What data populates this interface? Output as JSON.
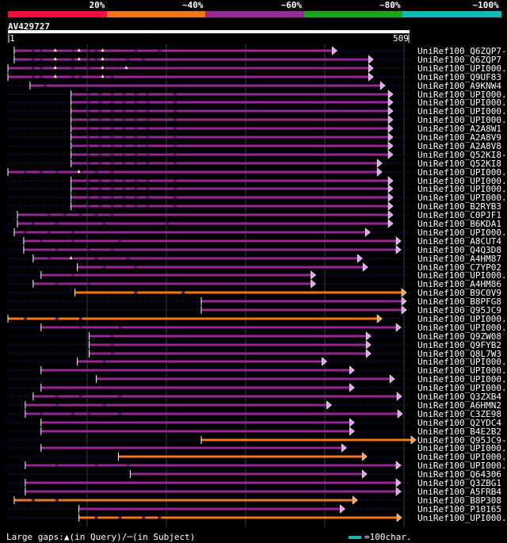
{
  "legend": {
    "scale_labels": [
      "20%",
      "~40%",
      "~60%",
      "~80%",
      "~100%"
    ],
    "scale_colors": [
      "#e8143c",
      "#f07818",
      "#982898",
      "#18a818",
      "#18b8b8"
    ]
  },
  "query": {
    "name": "AV429727",
    "start_label": "1",
    "end_label": "509",
    "length": 509
  },
  "footer": {
    "gaps_text": "Large gaps:▲(in Query)/─(in Subject)",
    "scale_text": "=100char.",
    "scale_color": "#18b8b8"
  },
  "hits": [
    {
      "id": "UniRef100_Q6ZQP7-2",
      "start": 8,
      "end": 417,
      "color": "#982898",
      "arrow": "lavender",
      "notches": [
        3,
        6,
        9
      ],
      "gaps": [
        30,
        40,
        80,
        100,
        110,
        160,
        190
      ]
    },
    {
      "id": "UniRef100_Q6ZQP7",
      "start": 8,
      "end": 463,
      "color": "#982898",
      "arrow": "lavender",
      "notches": [
        3,
        6,
        9
      ],
      "gaps": [
        30,
        40,
        80,
        100,
        110,
        150,
        170
      ]
    },
    {
      "id": "UniRef100_UPI000..",
      "start": 0,
      "end": 463,
      "color": "#982898",
      "arrow": "lavender",
      "notches": [
        3,
        9,
        12
      ],
      "gaps": [
        30,
        40,
        80,
        100,
        120
      ]
    },
    {
      "id": "UniRef100_Q9UF83",
      "start": 0,
      "end": 463,
      "color": "#982898",
      "arrow": "lavender",
      "notches": [
        3,
        9
      ],
      "gaps": [
        30,
        40,
        80,
        90,
        120,
        130
      ]
    },
    {
      "id": "UniRef100_A9KNW4",
      "start": 28,
      "end": 478,
      "color": "#982898",
      "arrow": "lavender",
      "notches": [],
      "gaps": [
        45
      ]
    },
    {
      "id": "UniRef100_UPI000..",
      "start": 80,
      "end": 488,
      "color": "#982898",
      "arrow": "lavender",
      "notches": [],
      "gaps": [
        100,
        115,
        130,
        145,
        160,
        175,
        210
      ]
    },
    {
      "id": "UniRef100_UPI000..",
      "start": 80,
      "end": 488,
      "color": "#982898",
      "arrow": "lavender",
      "notches": [],
      "gaps": [
        100,
        115,
        130,
        145,
        160,
        175,
        210
      ]
    },
    {
      "id": "UniRef100_UPI000..",
      "start": 80,
      "end": 488,
      "color": "#982898",
      "arrow": "lavender",
      "notches": [],
      "gaps": [
        100,
        115,
        130,
        145,
        160,
        175,
        210
      ]
    },
    {
      "id": "UniRef100_UPI000..",
      "start": 80,
      "end": 488,
      "color": "#982898",
      "arrow": "lavender",
      "notches": [],
      "gaps": [
        100,
        115,
        130,
        145,
        160,
        175,
        210
      ]
    },
    {
      "id": "UniRef100_A2A8W1",
      "start": 80,
      "end": 488,
      "color": "#982898",
      "arrow": "lavender",
      "notches": [],
      "gaps": [
        100,
        115,
        130,
        145,
        160,
        175,
        210
      ]
    },
    {
      "id": "UniRef100_A2A8V9",
      "start": 80,
      "end": 488,
      "color": "#982898",
      "arrow": "lavender",
      "notches": [],
      "gaps": [
        100,
        115,
        130,
        145,
        160,
        175,
        210
      ]
    },
    {
      "id": "UniRef100_A2A8V8",
      "start": 80,
      "end": 488,
      "color": "#982898",
      "arrow": "lavender",
      "notches": [],
      "gaps": [
        100,
        115,
        130,
        145,
        160,
        175,
        210
      ]
    },
    {
      "id": "UniRef100_Q52KI8-2",
      "start": 80,
      "end": 488,
      "color": "#982898",
      "arrow": "lavender",
      "notches": [],
      "gaps": [
        100,
        115,
        130,
        145,
        160,
        175,
        210
      ]
    },
    {
      "id": "UniRef100_Q52KI8",
      "start": 80,
      "end": 474,
      "color": "#982898",
      "arrow": "lavender",
      "notches": [],
      "gaps": [
        100,
        115,
        130,
        145,
        160,
        175,
        210
      ]
    },
    {
      "id": "UniRef100_UPI000..",
      "start": 0,
      "end": 474,
      "color": "#982898",
      "arrow": "lavender",
      "notches": [
        6
      ],
      "gaps": [
        20,
        40,
        60,
        90,
        110,
        130
      ]
    },
    {
      "id": "UniRef100_UPI000..",
      "start": 80,
      "end": 488,
      "color": "#982898",
      "arrow": "lavender",
      "notches": [],
      "gaps": [
        100,
        115,
        130,
        145,
        160,
        175,
        210
      ]
    },
    {
      "id": "UniRef100_UPI000..",
      "start": 80,
      "end": 488,
      "color": "#982898",
      "arrow": "lavender",
      "notches": [],
      "gaps": [
        100,
        115,
        130,
        145,
        160,
        175,
        210
      ]
    },
    {
      "id": "UniRef100_UPI000..",
      "start": 80,
      "end": 488,
      "color": "#982898",
      "arrow": "lavender",
      "notches": [],
      "gaps": [
        100,
        115,
        130,
        145,
        160,
        175,
        210
      ]
    },
    {
      "id": "UniRef100_B2RYB3",
      "start": 80,
      "end": 488,
      "color": "#982898",
      "arrow": "lavender",
      "notches": [],
      "gaps": [
        100,
        115,
        130,
        145,
        160,
        175,
        210
      ]
    },
    {
      "id": "UniRef100_C0PJF1",
      "start": 12,
      "end": 488,
      "color": "#982898",
      "arrow": "lavender",
      "notches": [],
      "gaps": [
        50,
        70,
        90,
        110,
        130
      ]
    },
    {
      "id": "UniRef100_B6KDA1",
      "start": 12,
      "end": 488,
      "color": "#982898",
      "arrow": "lavender",
      "notches": [],
      "gaps": [
        30,
        60,
        120,
        200
      ]
    },
    {
      "id": "UniRef100_UPI000..",
      "start": 8,
      "end": 459,
      "color": "#982898",
      "arrow": "lavender",
      "notches": [],
      "gaps": [
        20,
        50,
        80
      ]
    },
    {
      "id": "UniRef100_A8CUT4",
      "start": 20,
      "end": 498,
      "color": "#982898",
      "arrow": "lavender",
      "notches": [],
      "gaps": [
        40,
        80,
        140
      ]
    },
    {
      "id": "UniRef100_Q4Q3D8",
      "start": 20,
      "end": 498,
      "color": "#982898",
      "arrow": "lavender",
      "notches": [],
      "gaps": [
        60,
        100,
        130
      ]
    },
    {
      "id": "UniRef100_A4HM87",
      "start": 32,
      "end": 449,
      "color": "#982898",
      "arrow": "lavender",
      "notches": [
        5
      ],
      "gaps": [
        50,
        80,
        110,
        150
      ]
    },
    {
      "id": "UniRef100_C7YP02",
      "start": 88,
      "end": 456,
      "color": "#982898",
      "arrow": "lavender",
      "notches": [],
      "gaps": [
        120,
        160
      ]
    },
    {
      "id": "UniRef100_UPI000..",
      "start": 42,
      "end": 390,
      "color": "#982898",
      "arrow": "lavender",
      "notches": [],
      "gaps": [
        80
      ]
    },
    {
      "id": "UniRef100_A4HM86",
      "start": 32,
      "end": 390,
      "color": "#982898",
      "arrow": "lavender",
      "notches": [],
      "gaps": [
        60,
        100
      ]
    },
    {
      "id": "UniRef100_B9C0V9",
      "start": 85,
      "end": 505,
      "color": "#f07818",
      "arrow": "orange",
      "notches": [],
      "gaps": [
        160,
        220
      ]
    },
    {
      "id": "UniRef100_B8PFG8",
      "start": 245,
      "end": 505,
      "color": "#982898",
      "arrow": "lavender",
      "notches": [],
      "gaps": []
    },
    {
      "id": "UniRef100_Q95JC9",
      "start": 245,
      "end": 505,
      "color": "#982898",
      "arrow": "lavender",
      "notches": [],
      "gaps": []
    },
    {
      "id": "UniRef100_UPI000..",
      "start": 0,
      "end": 474,
      "color": "#f07818",
      "arrow": "orange",
      "notches": [],
      "gaps": [
        20,
        60,
        90
      ]
    },
    {
      "id": "UniRef100_UPI000..",
      "start": 42,
      "end": 498,
      "color": "#982898",
      "arrow": "lavender",
      "notches": [],
      "gaps": [
        90,
        140
      ]
    },
    {
      "id": "UniRef100_Q9ZW08",
      "start": 103,
      "end": 460,
      "color": "#982898",
      "arrow": "lavender",
      "notches": [],
      "gaps": [
        130
      ]
    },
    {
      "id": "UniRef100_Q9FYB2",
      "start": 103,
      "end": 460,
      "color": "#982898",
      "arrow": "lavender",
      "notches": [],
      "gaps": [
        130
      ]
    },
    {
      "id": "UniRef100_Q8L7W3",
      "start": 103,
      "end": 460,
      "color": "#982898",
      "arrow": "lavender",
      "notches": [],
      "gaps": [
        130
      ]
    },
    {
      "id": "UniRef100_UPI000..",
      "start": 88,
      "end": 404,
      "color": "#982898",
      "arrow": "lavender",
      "notches": [],
      "gaps": [
        120
      ]
    },
    {
      "id": "UniRef100_UPI000..",
      "start": 42,
      "end": 439,
      "color": "#982898",
      "arrow": "lavender",
      "notches": [],
      "gaps": []
    },
    {
      "id": "UniRef100_UPI000..",
      "start": 112,
      "end": 490,
      "color": "#982898",
      "arrow": "lavender",
      "notches": [],
      "gaps": []
    },
    {
      "id": "UniRef100_UPI000..",
      "start": 42,
      "end": 439,
      "color": "#982898",
      "arrow": "lavender",
      "notches": [],
      "gaps": []
    },
    {
      "id": "UniRef100_Q3ZXB4",
      "start": 32,
      "end": 499,
      "color": "#982898",
      "arrow": "lavender",
      "notches": [],
      "gaps": [
        60,
        90,
        140
      ]
    },
    {
      "id": "UniRef100_A6HMN2",
      "start": 22,
      "end": 410,
      "color": "#982898",
      "arrow": "lavender",
      "notches": [],
      "gaps": [
        60,
        120
      ]
    },
    {
      "id": "UniRef100_C3ZE98",
      "start": 22,
      "end": 500,
      "color": "#982898",
      "arrow": "lavender",
      "notches": [],
      "gaps": [
        40,
        80,
        100,
        140
      ]
    },
    {
      "id": "UniRef100_Q2YDC4",
      "start": 42,
      "end": 439,
      "color": "#982898",
      "arrow": "lavender",
      "notches": [],
      "gaps": []
    },
    {
      "id": "UniRef100_B4E2B2",
      "start": 42,
      "end": 439,
      "color": "#982898",
      "arrow": "lavender",
      "notches": [],
      "gaps": []
    },
    {
      "id": "UniRef100_Q95JC9-3",
      "start": 245,
      "end": 517,
      "color": "#f07818",
      "arrow": "orange",
      "notches": [],
      "gaps": []
    },
    {
      "id": "UniRef100_UPI000..",
      "start": 42,
      "end": 429,
      "color": "#982898",
      "arrow": "lavender",
      "notches": [],
      "gaps": []
    },
    {
      "id": "UniRef100_UPI000..",
      "start": 140,
      "end": 455,
      "color": "#f07818",
      "arrow": "orange",
      "notches": [],
      "gaps": []
    },
    {
      "id": "UniRef100_UPI000..",
      "start": 22,
      "end": 498,
      "color": "#982898",
      "arrow": "lavender",
      "notches": [],
      "gaps": [
        60,
        110,
        150
      ]
    },
    {
      "id": "UniRef100_Q64306",
      "start": 155,
      "end": 455,
      "color": "#982898",
      "arrow": "lavender",
      "notches": [],
      "gaps": []
    },
    {
      "id": "UniRef100_Q3ZBG1",
      "start": 22,
      "end": 498,
      "color": "#982898",
      "arrow": "lavender",
      "notches": [],
      "gaps": []
    },
    {
      "id": "UniRef100_A5FRB4",
      "start": 22,
      "end": 498,
      "color": "#982898",
      "arrow": "lavender",
      "notches": [],
      "gaps": []
    },
    {
      "id": "UniRef100_B8P308",
      "start": 8,
      "end": 443,
      "color": "#f07818",
      "arrow": "orange",
      "notches": [],
      "gaps": [
        30,
        60
      ]
    },
    {
      "id": "UniRef100_P10165",
      "start": 90,
      "end": 427,
      "color": "#982898",
      "arrow": "lavender",
      "notches": [],
      "gaps": []
    },
    {
      "id": "UniRef100_UPI000..",
      "start": 90,
      "end": 499,
      "color": "#f07818",
      "arrow": "orange",
      "notches": [],
      "gaps": [
        110,
        140,
        170,
        190
      ]
    }
  ]
}
